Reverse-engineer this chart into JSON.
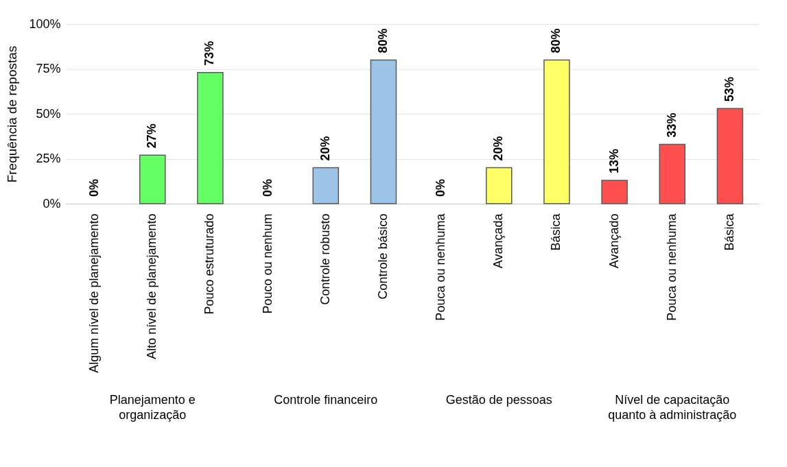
{
  "chart_data": {
    "type": "bar",
    "ylabel": "Frequência de repostas",
    "categories": [
      "Algum nível de planejamento",
      "Alto nível de planejamento",
      "Pouco estruturado",
      "Pouco ou nenhum",
      "Controle robusto",
      "Controle básico",
      "Pouca ou nenhuma",
      "Avançada",
      "Básica",
      "Avançado",
      "Pouca ou nenhuma",
      "Básica"
    ],
    "series": [
      {
        "color": "#66ff66",
        "values": [
          0,
          27,
          73,
          null,
          null,
          null,
          null,
          null,
          null,
          null,
          null,
          null
        ],
        "value_labels": [
          "0%",
          "27%",
          "73%",
          null,
          null,
          null,
          null,
          null,
          null,
          null,
          null,
          null
        ]
      },
      {
        "color": "#9dc3e6",
        "values": [
          null,
          null,
          null,
          0,
          20,
          80,
          null,
          null,
          null,
          null,
          null,
          null
        ],
        "value_labels": [
          null,
          null,
          null,
          "0%",
          "20%",
          "80%",
          null,
          null,
          null,
          null,
          null,
          null
        ]
      },
      {
        "color": "#ffff66",
        "values": [
          null,
          null,
          null,
          null,
          null,
          null,
          0,
          20,
          80,
          null,
          null,
          null
        ],
        "value_labels": [
          null,
          null,
          null,
          null,
          null,
          null,
          "0%",
          "20%",
          "80%",
          null,
          null,
          null
        ]
      },
      {
        "color": "#ff5050",
        "values": [
          null,
          null,
          null,
          null,
          null,
          null,
          null,
          null,
          null,
          13,
          33,
          53
        ],
        "value_labels": [
          null,
          null,
          null,
          null,
          null,
          null,
          null,
          null,
          null,
          "13%",
          "33%",
          "53%"
        ]
      }
    ],
    "ylim": [
      0,
      100
    ],
    "yticks": [
      {
        "value": 0,
        "label": "0%"
      },
      {
        "value": 25,
        "label": "25%"
      },
      {
        "value": 50,
        "label": "50%"
      },
      {
        "value": 75,
        "label": "75%"
      },
      {
        "value": 100,
        "label": "100%"
      }
    ],
    "annotations": [
      "Planejamento e organização",
      "Controle financeiro",
      "Gestão de pessoas",
      "Nível de capacitação quanto à administração"
    ],
    "grid": "y",
    "legend": false
  }
}
